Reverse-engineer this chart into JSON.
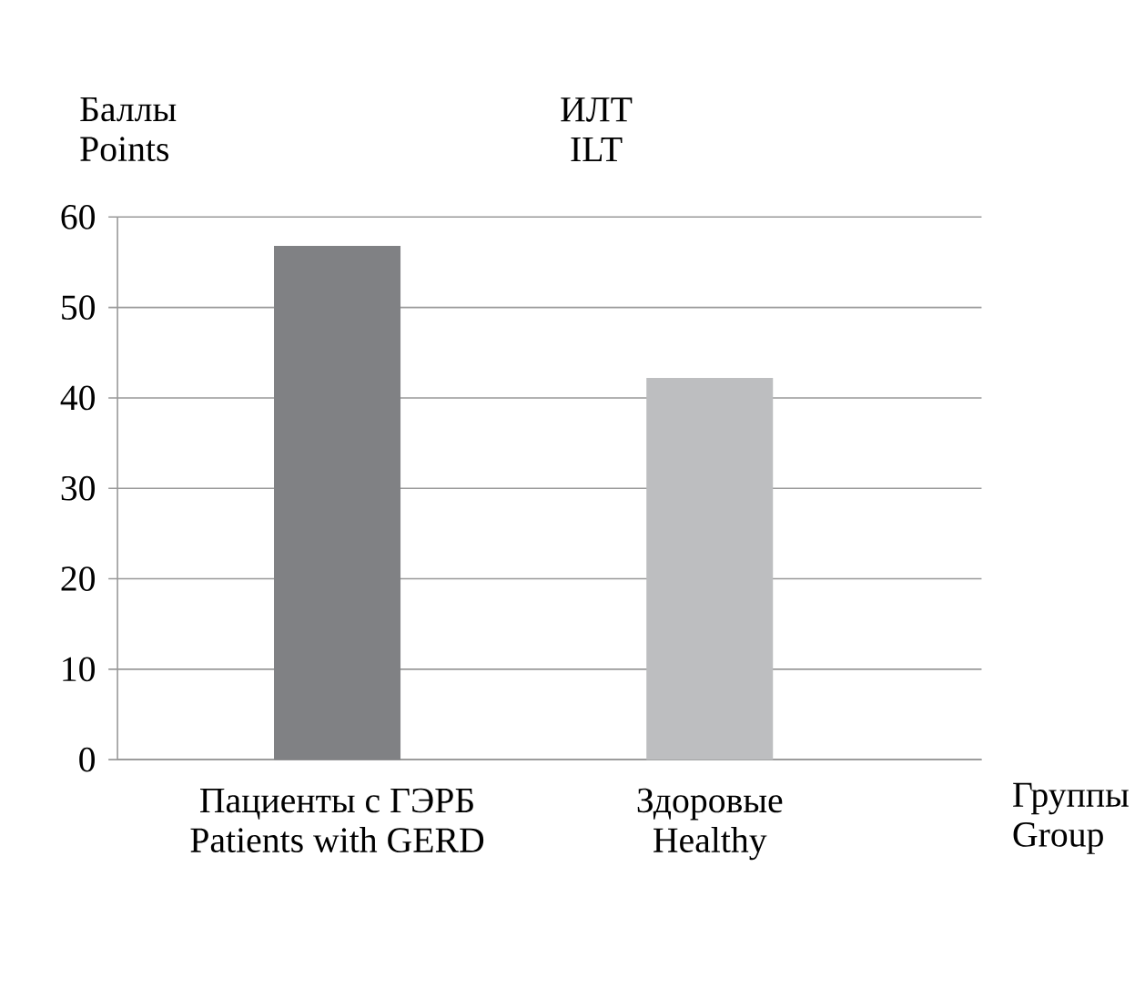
{
  "chart_data": {
    "type": "bar",
    "title": "ИЛТ ILT",
    "ylabel": "Баллы Points",
    "xlabel": "Группы Group",
    "categories": [
      "Пациенты с ГЭРБ Patients with GERD",
      "Здоровые Healthy"
    ],
    "values": [
      56.8,
      42.2
    ],
    "colors": [
      "#808184",
      "#bdbec0"
    ],
    "ylim": [
      0,
      60
    ],
    "yticks": [
      0,
      10,
      20,
      30,
      40,
      50,
      60
    ],
    "grid": "y"
  }
}
